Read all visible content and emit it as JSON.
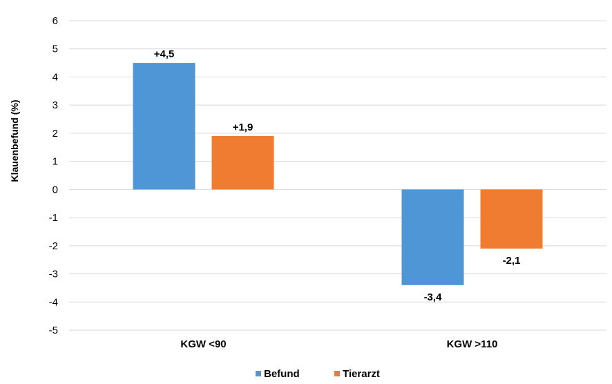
{
  "chart_data": {
    "type": "bar",
    "ylabel": "Klauenbefund (%)",
    "ylim": [
      -5,
      6
    ],
    "yticks": [
      6,
      5,
      4,
      3,
      2,
      1,
      0,
      -1,
      -2,
      -3,
      -4,
      -5
    ],
    "categories": [
      "KGW <90",
      "KGW >110"
    ],
    "series": [
      {
        "name": "Befund",
        "color": "#4E96D5",
        "values": [
          4.5,
          -3.4
        ],
        "labels": [
          "+4,5",
          "-3,4"
        ]
      },
      {
        "name": "Tierarzt",
        "color": "#EF7C31",
        "values": [
          1.9,
          -2.1
        ],
        "labels": [
          "+1,9",
          "-2,1"
        ]
      }
    ],
    "grid": true,
    "legend": "bottom"
  }
}
